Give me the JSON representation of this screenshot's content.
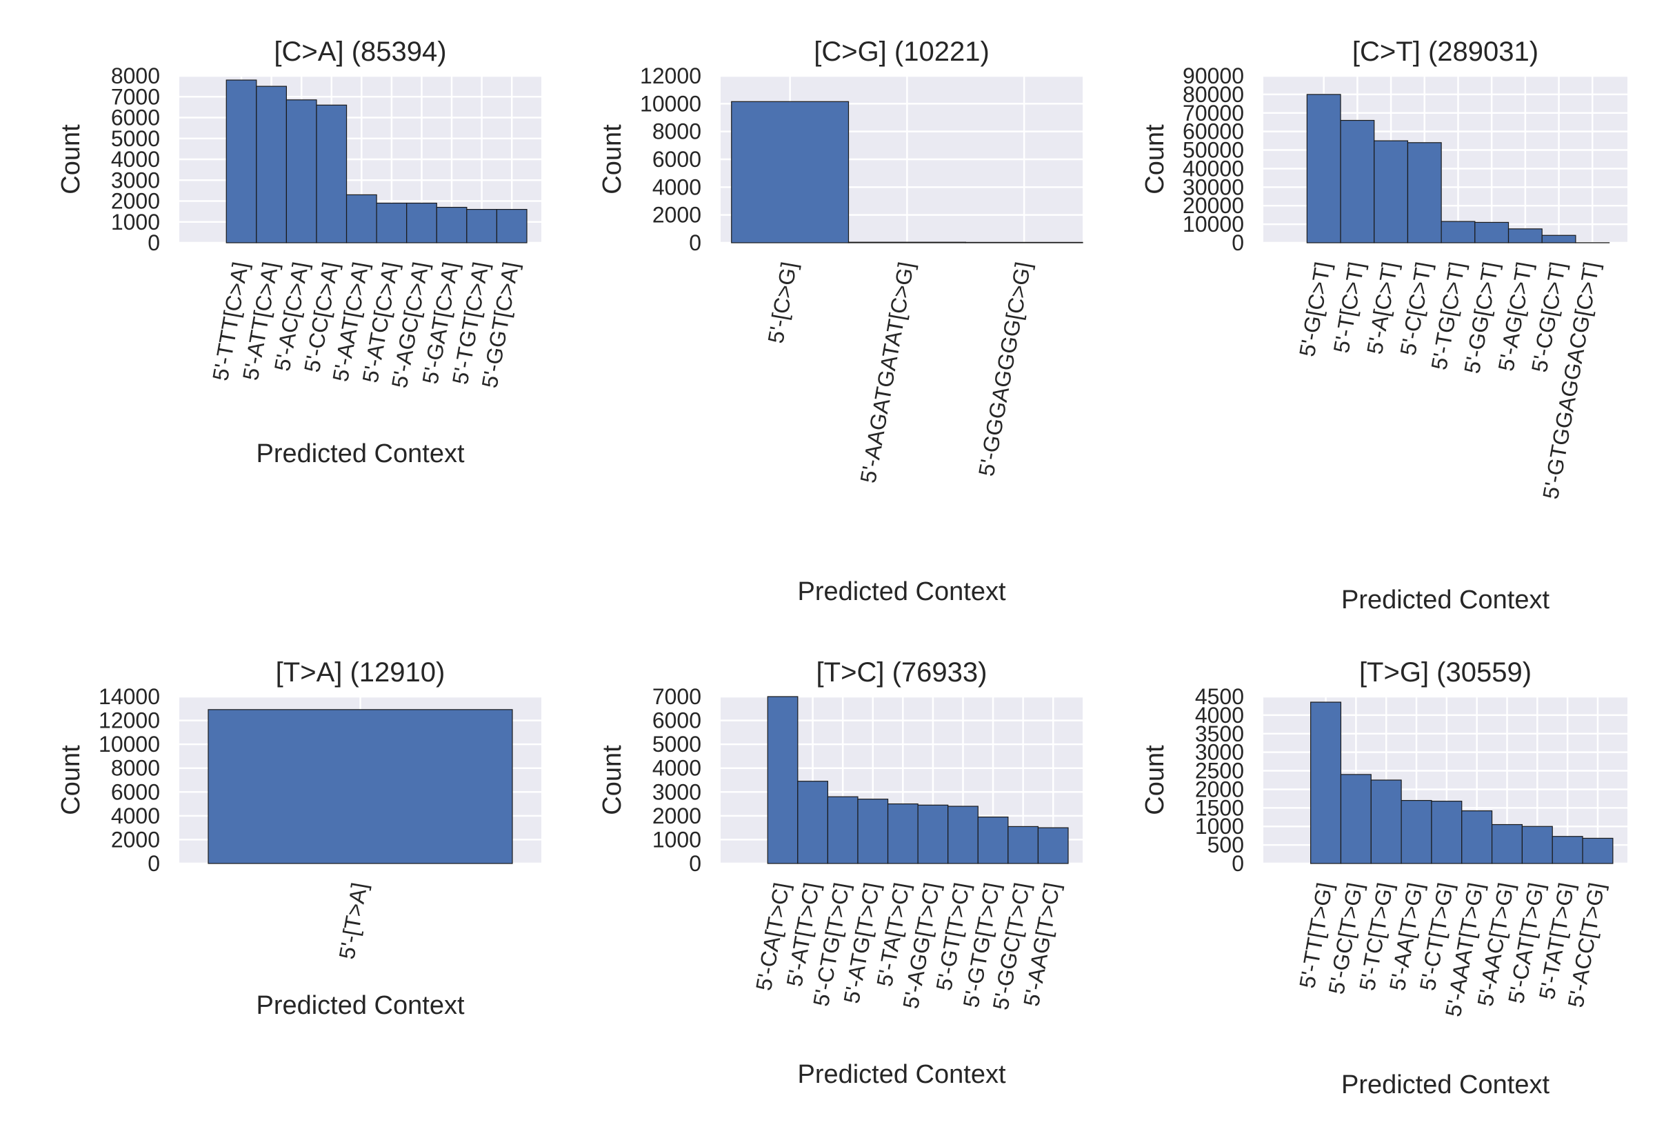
{
  "figure": {
    "style": {
      "plot_background": "#EAEAF2",
      "grid_color": "#FFFFFF",
      "bar_color": "#4C72B0",
      "bar_edge": "#1A1A1A",
      "text_color": "#262626"
    }
  },
  "chart_data": [
    {
      "type": "bar",
      "title": "[C>A] (85394)",
      "xlabel": "Predicted Context",
      "ylabel": "Count",
      "ylim": [
        0,
        8000
      ],
      "yticks": [
        "0",
        "1000",
        "2000",
        "3000",
        "4000",
        "5000",
        "6000",
        "7000",
        "8000"
      ],
      "grid": true,
      "categories": [
        "5'-TTT[C>A]",
        "5'-ATT[C>A]",
        "5'-AC[C>A]",
        "5'-CC[C>A]",
        "5'-AAT[C>A]",
        "5'-ATC[C>A]",
        "5'-AGC[C>A]",
        "5'-GAT[C>A]",
        "5'-TGT[C>A]",
        "5'-GGT[C>A]"
      ],
      "values": [
        7800,
        7500,
        6850,
        6600,
        2300,
        1900,
        1900,
        1700,
        1600,
        1600
      ]
    },
    {
      "type": "bar",
      "title": "[C>G] (10221)",
      "xlabel": "Predicted Context",
      "ylabel": "Count",
      "ylim": [
        0,
        12000
      ],
      "yticks": [
        "0",
        "2000",
        "4000",
        "6000",
        "8000",
        "10000",
        "12000"
      ],
      "grid": true,
      "categories": [
        "5'-[C>G]",
        "5'-AAGATGATAT[C>G]",
        "5'-GGGAGGGG[C>G]"
      ],
      "values": [
        10150,
        40,
        30
      ]
    },
    {
      "type": "bar",
      "title": "[C>T] (289031)",
      "xlabel": "Predicted Context",
      "ylabel": "Count",
      "ylim": [
        0,
        90000
      ],
      "yticks": [
        "0",
        "10000",
        "20000",
        "30000",
        "40000",
        "50000",
        "60000",
        "70000",
        "80000",
        "90000"
      ],
      "grid": true,
      "categories": [
        "5'-G[C>T]",
        "5'-T[C>T]",
        "5'-A[C>T]",
        "5'-C[C>T]",
        "5'-TG[C>T]",
        "5'-GG[C>T]",
        "5'-AG[C>T]",
        "5'-CG[C>T]",
        "5'-GTGGAGGACG[C>T]"
      ],
      "values": [
        80000,
        66000,
        55000,
        54000,
        11500,
        11000,
        7500,
        4000,
        50
      ]
    },
    {
      "type": "bar",
      "title": "[T>A] (12910)",
      "xlabel": "Predicted Context",
      "ylabel": "Count",
      "ylim": [
        0,
        14000
      ],
      "yticks": [
        "0",
        "2000",
        "4000",
        "6000",
        "8000",
        "10000",
        "12000",
        "14000"
      ],
      "grid": true,
      "categories": [
        "5'-[T>A]"
      ],
      "values": [
        12910
      ]
    },
    {
      "type": "bar",
      "title": "[T>C] (76933)",
      "xlabel": "Predicted Context",
      "ylabel": "Count",
      "ylim": [
        0,
        7000
      ],
      "yticks": [
        "0",
        "1000",
        "2000",
        "3000",
        "4000",
        "5000",
        "6000",
        "7000"
      ],
      "grid": true,
      "categories": [
        "5'-CA[T>C]",
        "5'-AT[T>C]",
        "5'-CTG[T>C]",
        "5'-ATG[T>C]",
        "5'-TA[T>C]",
        "5'-AGG[T>C]",
        "5'-GT[T>C]",
        "5'-GTG[T>C]",
        "5'-GGC[T>C]",
        "5'-AAG[T>C]"
      ],
      "values": [
        7000,
        3450,
        2800,
        2700,
        2500,
        2450,
        2400,
        1950,
        1550,
        1500
      ]
    },
    {
      "type": "bar",
      "title": "[T>G] (30559)",
      "xlabel": "Predicted Context",
      "ylabel": "Count",
      "ylim": [
        0,
        4500
      ],
      "yticks": [
        "0",
        "500",
        "1000",
        "1500",
        "2000",
        "2500",
        "3000",
        "3500",
        "4000",
        "4500"
      ],
      "grid": true,
      "categories": [
        "5'-TT[T>G]",
        "5'-GC[T>G]",
        "5'-TC[T>G]",
        "5'-AA[T>G]",
        "5'-CT[T>G]",
        "5'-AAAT[T>G]",
        "5'-AAC[T>G]",
        "5'-CAT[T>G]",
        "5'-TAT[T>G]",
        "5'-ACC[T>G]"
      ],
      "values": [
        4350,
        2400,
        2250,
        1700,
        1680,
        1420,
        1050,
        1000,
        730,
        680
      ]
    }
  ]
}
